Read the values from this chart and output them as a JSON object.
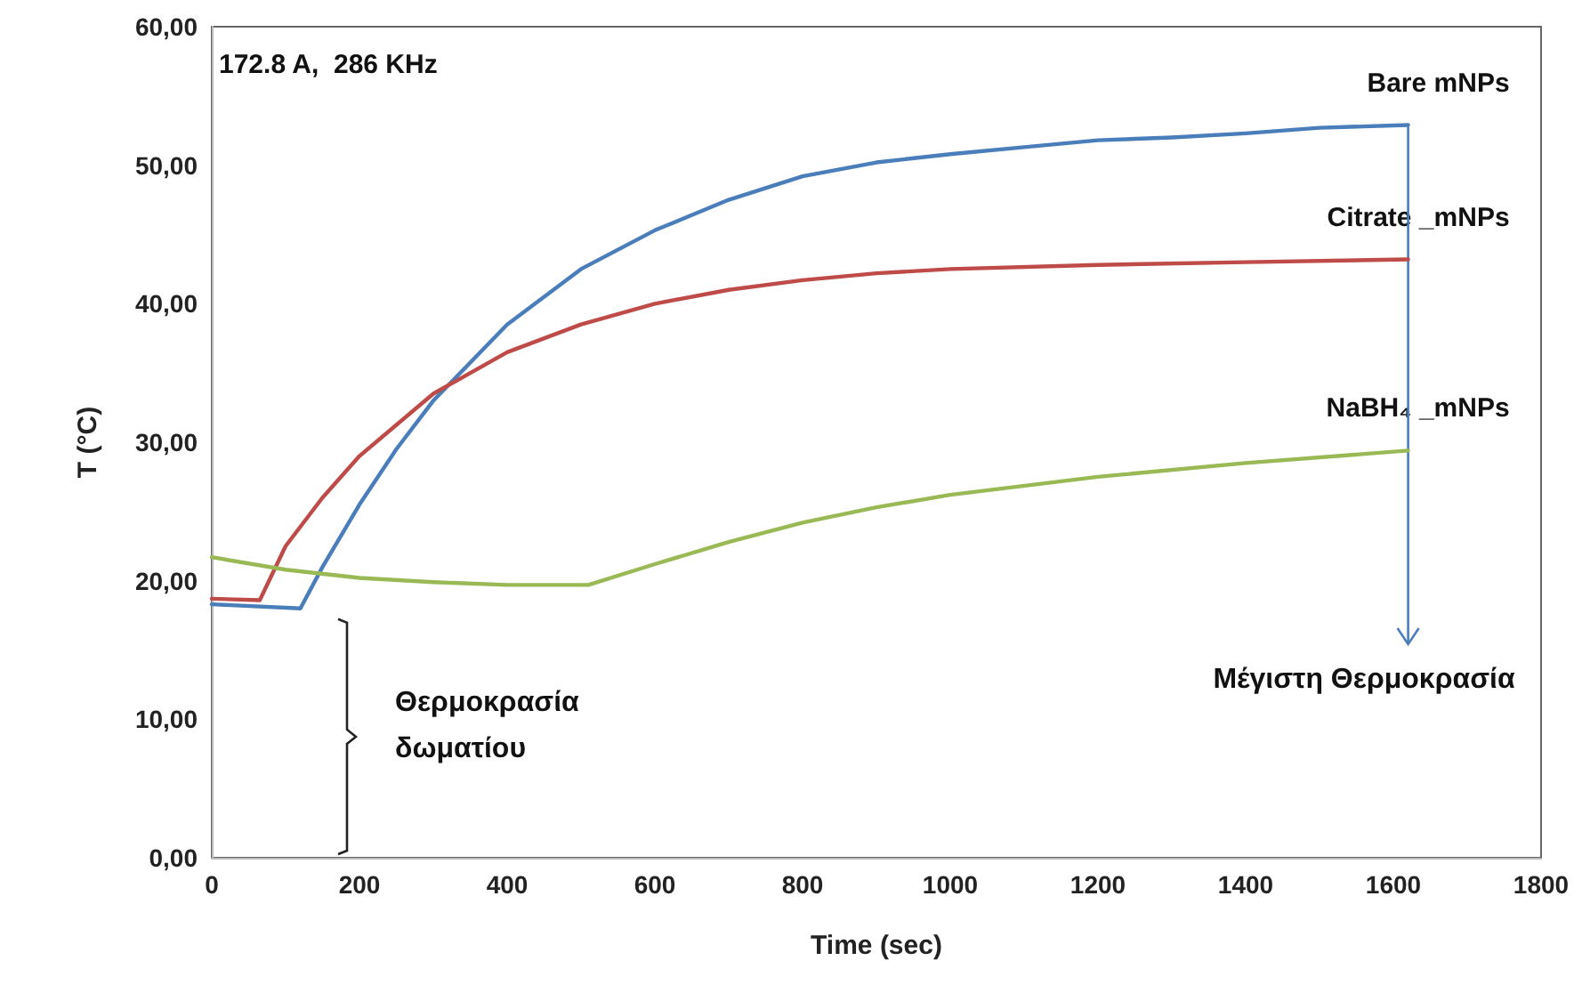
{
  "chart_data": {
    "type": "line",
    "xlabel": "Time (sec)",
    "ylabel": "T (°C)",
    "xlim": [
      0,
      1800
    ],
    "xticks": [
      0,
      200,
      400,
      600,
      800,
      1000,
      1200,
      1400,
      1600,
      1800
    ],
    "ylim": [
      0,
      60
    ],
    "yticks": [
      {
        "value": 0,
        "label": "0,00"
      },
      {
        "value": 10,
        "label": "10,00"
      },
      {
        "value": 20,
        "label": "20,00"
      },
      {
        "value": 30,
        "label": "30,00"
      },
      {
        "value": 40,
        "label": "40,00"
      },
      {
        "value": 50,
        "label": "50,00"
      },
      {
        "value": 60,
        "label": "60,00"
      }
    ],
    "grid": false,
    "legend": false,
    "marker": "none",
    "line_style": "solid",
    "annotations": [
      "172.8 A,  286 KHz",
      "Θερμοκρασία δωματίου",
      {
        "text": "Μέγιστη Θερμοκρασία",
        "x": 1620,
        "y": 52.9
      }
    ],
    "series": [
      {
        "name": "Bare mNPs",
        "color": "#4a7ebb",
        "x": [
          0,
          120,
          150,
          200,
          250,
          300,
          400,
          500,
          600,
          700,
          800,
          900,
          1000,
          1100,
          1200,
          1300,
          1400,
          1500,
          1620
        ],
        "values": [
          18.3,
          18.0,
          21,
          25.5,
          29.5,
          33,
          38.5,
          42.5,
          45.3,
          47.5,
          49.2,
          50.2,
          50.8,
          51.3,
          51.8,
          52.0,
          52.3,
          52.7,
          52.9
        ]
      },
      {
        "name": "Citrate _mNPs",
        "color": "#be4b48",
        "x": [
          0,
          65,
          100,
          150,
          200,
          300,
          400,
          500,
          600,
          700,
          800,
          900,
          1000,
          1200,
          1400,
          1620
        ],
        "values": [
          18.7,
          18.6,
          22.5,
          26,
          29,
          33.5,
          36.5,
          38.5,
          40,
          41,
          41.7,
          42.2,
          42.5,
          42.8,
          43,
          43.2
        ]
      },
      {
        "name": "NaBH₄ _mNPs",
        "color": "#98b954",
        "x": [
          0,
          100,
          200,
          300,
          400,
          510,
          600,
          700,
          800,
          900,
          1000,
          1200,
          1400,
          1620
        ],
        "values": [
          21.7,
          20.8,
          20.2,
          19.9,
          19.7,
          19.7,
          21.2,
          22.8,
          24.2,
          25.3,
          26.2,
          27.5,
          28.5,
          29.4
        ]
      }
    ]
  }
}
